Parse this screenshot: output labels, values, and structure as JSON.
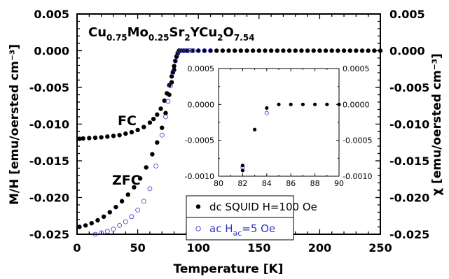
{
  "chart_data": {
    "type": "scatter",
    "title_parts": [
      {
        "t": "Cu",
        "sub": false
      },
      {
        "t": "0.75",
        "sub": true
      },
      {
        "t": "Mo",
        "sub": false
      },
      {
        "t": "0.25",
        "sub": true
      },
      {
        "t": "Sr",
        "sub": false
      },
      {
        "t": "2",
        "sub": true
      },
      {
        "t": "YCu",
        "sub": false
      },
      {
        "t": "2",
        "sub": true
      },
      {
        "t": "O",
        "sub": false
      },
      {
        "t": "7.54",
        "sub": true
      }
    ],
    "xlabel": "Temperature [K]",
    "ylabel_left": "M/H [emu/oersted cm⁻³]",
    "ylabel_right": "χ [emu/oersted cm⁻³]",
    "xlim": [
      0,
      250
    ],
    "ylim": [
      -0.025,
      0.005
    ],
    "xticks": [
      "0",
      "50",
      "100",
      "150",
      "200",
      "250"
    ],
    "yticks": [
      "0.005",
      "0.000",
      "-0.005",
      "-0.010",
      "-0.015",
      "-0.020",
      "-0.025"
    ],
    "annotations": {
      "fc": "FC",
      "zfc": "ZFC"
    },
    "legend": {
      "dc_label": "dc SQUID H=100 Oe",
      "ac_parts": [
        {
          "t": "ac H",
          "sub": false
        },
        {
          "t": "ac",
          "sub": true
        },
        {
          "t": "=5 Oe",
          "sub": false
        }
      ]
    },
    "colors": {
      "dc": "#000000",
      "ac": "#3333cc"
    },
    "series": [
      {
        "key": "dc_fc",
        "style": "filled",
        "x": [
          2,
          5,
          10,
          15,
          20,
          25,
          30,
          35,
          40,
          45,
          50,
          55,
          60,
          63,
          66,
          69,
          72,
          74,
          76,
          78,
          79,
          80,
          81,
          82,
          83,
          84
        ],
        "y": [
          -0.012,
          -0.01195,
          -0.0119,
          -0.01185,
          -0.0118,
          -0.0117,
          -0.0116,
          -0.0115,
          -0.0113,
          -0.0111,
          -0.0108,
          -0.0104,
          -0.0098,
          -0.0093,
          -0.0087,
          -0.0079,
          -0.0068,
          -0.0058,
          -0.0047,
          -0.0035,
          -0.0029,
          -0.0021,
          -0.0014,
          -0.0008,
          -0.0003,
          0.0
        ]
      },
      {
        "key": "dc_zfc",
        "style": "filled",
        "x": [
          2,
          7,
          12,
          17,
          22,
          27,
          32,
          37,
          42,
          47,
          52,
          57,
          62,
          66,
          70,
          73,
          76,
          78,
          80,
          82,
          84
        ],
        "y": [
          -0.024,
          -0.0238,
          -0.0235,
          -0.0231,
          -0.0226,
          -0.022,
          -0.0213,
          -0.0205,
          -0.0196,
          -0.0186,
          -0.0174,
          -0.0159,
          -0.0141,
          -0.0125,
          -0.0105,
          -0.0085,
          -0.006,
          -0.0043,
          -0.0026,
          -0.0008,
          0.0
        ]
      },
      {
        "key": "dc_flat",
        "style": "filled",
        "x": [
          85,
          88,
          91,
          95,
          100,
          105,
          110,
          115,
          120,
          125,
          130,
          135,
          140,
          145,
          150,
          155,
          160,
          165,
          170,
          175,
          180,
          185,
          190,
          195,
          200,
          205,
          210,
          215,
          220,
          225,
          230,
          235,
          240,
          245,
          250
        ],
        "y": [
          0.0,
          0.0,
          0.0,
          0.0,
          0.0,
          0.0,
          0.0,
          0.0,
          0.0,
          0.0,
          0.0,
          0.0,
          0.0,
          0.0,
          0.0,
          0.0,
          0.0,
          0.0,
          0.0,
          0.0,
          0.0,
          0.0,
          0.0,
          0.0,
          0.0,
          0.0,
          0.0,
          0.0,
          0.0,
          0.0,
          0.0,
          0.0,
          0.0,
          0.0,
          0.0
        ]
      },
      {
        "key": "ac",
        "style": "open",
        "x": [
          15,
          20,
          25,
          30,
          35,
          40,
          45,
          50,
          55,
          60,
          65,
          70,
          73,
          75,
          77,
          79,
          81,
          83,
          84,
          86,
          88,
          90,
          93,
          96,
          100,
          105,
          110
        ],
        "y": [
          -0.025,
          -0.0248,
          -0.0246,
          -0.0243,
          -0.0238,
          -0.0233,
          -0.0226,
          -0.0217,
          -0.0205,
          -0.0188,
          -0.0157,
          -0.0115,
          -0.009,
          -0.0069,
          -0.0048,
          -0.003,
          -0.0014,
          -0.0004,
          -0.0001,
          0.0,
          0.0,
          0.0,
          0.0,
          0.0,
          0.0,
          0.0,
          0.0
        ]
      }
    ],
    "inset": {
      "xlim": [
        80,
        90
      ],
      "ylim": [
        -0.001,
        0.0005
      ],
      "xticks": [
        "80",
        "82",
        "84",
        "86",
        "88",
        "90"
      ],
      "yticks": [
        "0.0005",
        "0.0000",
        "-0.0005",
        "-0.0010"
      ],
      "dc_x": [
        82,
        82,
        83,
        84,
        85,
        86,
        87,
        88,
        89,
        90
      ],
      "dc_y": [
        -0.00085,
        -0.00092,
        -0.00035,
        -5e-05,
        0.0,
        0.0,
        0.0,
        0.0,
        0.0,
        0.0
      ],
      "ac_x": [
        82,
        84
      ],
      "ac_y": [
        -0.00088,
        -0.00012
      ]
    }
  }
}
